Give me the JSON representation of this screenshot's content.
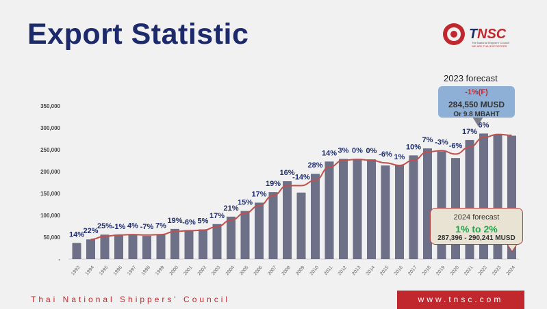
{
  "title": "Export Statistic",
  "logo": {
    "name": "TNSC",
    "sub1": "The National Shippers' Council",
    "sub2": "WE ARE THAI EXPORTERS"
  },
  "chart_data": {
    "type": "bar",
    "title": "Export Statistic",
    "ylabel": "MUSD",
    "ylim": [
      0,
      350000
    ],
    "yticks": [
      "-",
      "50,000",
      "100,000",
      "150,000",
      "200,000",
      "250,000",
      "300,000",
      "350,000"
    ],
    "categories": [
      "1993",
      "1994",
      "1995",
      "1996",
      "1997",
      "1998",
      "1999",
      "2000",
      "2001",
      "2002",
      "2003",
      "2004",
      "2005",
      "2006",
      "2007",
      "2008",
      "2009",
      "2010",
      "2011",
      "2012",
      "2013",
      "2014",
      "2015",
      "2016",
      "2017",
      "2018",
      "2019",
      "2020",
      "2021",
      "2022",
      "2023",
      "2024"
    ],
    "values": [
      37000,
      45000,
      56000,
      55000,
      57000,
      53000,
      57000,
      69000,
      65000,
      68000,
      80000,
      97000,
      110000,
      129000,
      153000,
      178000,
      152000,
      195000,
      223000,
      229000,
      229000,
      228000,
      214000,
      214000,
      237000,
      253000,
      246000,
      231000,
      272000,
      287000,
      285000,
      282000
    ],
    "growth_labels": [
      "14%",
      "22%",
      "25%",
      "-1%",
      "4%",
      "-7%",
      "7%",
      "19%",
      "-6%",
      "5%",
      "17%",
      "21%",
      "15%",
      "17%",
      "19%",
      "16%",
      "-14%",
      "28%",
      "14%",
      "3%",
      "0%",
      "0%",
      "-6%",
      "1%",
      "10%",
      "7%",
      "-3%",
      "-6%",
      "17%",
      "6%",
      "",
      ""
    ],
    "trend": [
      null,
      45000,
      52000,
      55000,
      56000,
      55000,
      56000,
      63000,
      65000,
      66000,
      74000,
      89000,
      105000,
      122000,
      145000,
      168000,
      168000,
      180000,
      210000,
      226000,
      228000,
      226000,
      220000,
      214000,
      226000,
      245000,
      248000,
      240000,
      256000,
      278000,
      285000,
      283000
    ],
    "colors": {
      "bar": "#6e7087",
      "trend": "#c0504d",
      "label": "#1f2d6e"
    }
  },
  "forecast_2023": {
    "heading": "2023 forecast",
    "growth": "-1%(F)",
    "value": "284,550 MUSD",
    "alt": "Or 9.8 MBAHT"
  },
  "forecast_2024": {
    "heading": "2024 forecast",
    "growth": "1% to 2%",
    "range": "287,396 - 290,241 MUSD"
  },
  "footer": {
    "left": "Thai National Shippers' Council",
    "right": "www.tnsc.com"
  }
}
